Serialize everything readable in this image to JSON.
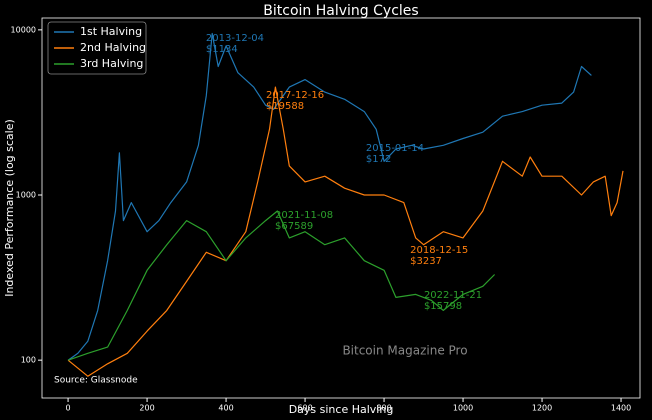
{
  "chart_data": {
    "type": "line",
    "title": "Bitcoin Halving Cycles",
    "x_label": "Days since Halving",
    "y_label": "Indexed Performance (log scale)",
    "log_y": true,
    "legend": "upper left",
    "watermark": "Bitcoin Magazine Pro",
    "source": "Source: Glassnode",
    "xlim": [
      -66,
      1448
    ],
    "xticks": [
      0,
      200,
      400,
      600,
      800,
      1000,
      1200,
      1400
    ],
    "ylim": [
      59,
      11800
    ],
    "yticks": [
      100,
      1000,
      10000
    ],
    "series": [
      {
        "name": "1st Halving",
        "color": "#1f77b4",
        "x": [
          0,
          25,
          50,
          75,
          100,
          120,
          130,
          140,
          160,
          200,
          230,
          260,
          300,
          330,
          350,
          365,
          380,
          400,
          430,
          470,
          500,
          520,
          560,
          600,
          650,
          700,
          750,
          780,
          800,
          830,
          870,
          900,
          950,
          1000,
          1050,
          1100,
          1150,
          1200,
          1250,
          1280,
          1300,
          1325
        ],
        "values": [
          100,
          110,
          130,
          200,
          400,
          800,
          1800,
          700,
          900,
          600,
          700,
          900,
          1200,
          2000,
          4000,
          9500,
          6000,
          8000,
          5500,
          4500,
          3500,
          3300,
          4500,
          5000,
          4200,
          3800,
          3200,
          2500,
          1600,
          1900,
          2000,
          1900,
          2000,
          2200,
          2400,
          3000,
          3200,
          3500,
          3600,
          4200,
          6000,
          5300
        ]
      },
      {
        "name": "2nd Halving",
        "color": "#ff7f0e",
        "x": [
          0,
          50,
          100,
          150,
          200,
          250,
          300,
          350,
          400,
          450,
          480,
          510,
          525,
          545,
          560,
          600,
          650,
          700,
          750,
          800,
          850,
          880,
          900,
          950,
          1000,
          1050,
          1100,
          1150,
          1170,
          1200,
          1250,
          1300,
          1330,
          1360,
          1375,
          1390,
          1405
        ],
        "values": [
          100,
          80,
          95,
          110,
          150,
          200,
          300,
          450,
          400,
          600,
          1200,
          2500,
          4500,
          2500,
          1500,
          1200,
          1300,
          1100,
          1000,
          1000,
          900,
          550,
          500,
          600,
          550,
          800,
          1600,
          1300,
          1700,
          1300,
          1300,
          1000,
          1200,
          1300,
          750,
          900,
          1400
        ]
      },
      {
        "name": "3rd Halving",
        "color": "#2ca02c",
        "x": [
          0,
          50,
          100,
          150,
          200,
          250,
          300,
          350,
          400,
          450,
          500,
          530,
          560,
          600,
          650,
          700,
          750,
          800,
          830,
          880,
          920,
          950,
          1000,
          1050,
          1080
        ],
        "values": [
          100,
          110,
          120,
          200,
          350,
          500,
          700,
          600,
          400,
          550,
          700,
          800,
          550,
          600,
          500,
          550,
          400,
          350,
          240,
          250,
          230,
          200,
          250,
          280,
          330
        ]
      }
    ],
    "annotations": [
      {
        "lines": [
          "2013-12-04",
          "$1134"
        ],
        "series": 0,
        "x": 349,
        "y": 8940
      },
      {
        "lines": [
          "2017-12-16",
          "$19588"
        ],
        "series": 1,
        "x": 501,
        "y": 4040
      },
      {
        "lines": [
          "2015-01-14",
          "$172"
        ],
        "series": 0,
        "x": 754,
        "y": 1930
      },
      {
        "lines": [
          "2021-11-08",
          "$67589"
        ],
        "series": 2,
        "x": 524,
        "y": 758
      },
      {
        "lines": [
          "2018-12-15",
          "$3237"
        ],
        "series": 1,
        "x": 866,
        "y": 464
      },
      {
        "lines": [
          "2022-11-21",
          "$15798"
        ],
        "series": 2,
        "x": 901,
        "y": 248
      }
    ]
  }
}
